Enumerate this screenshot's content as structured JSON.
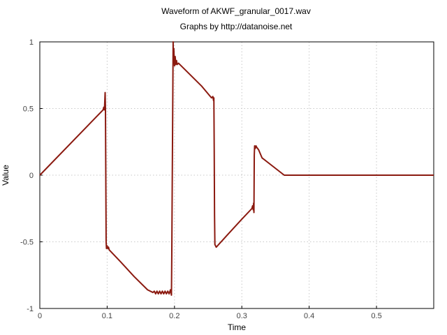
{
  "chart_data": {
    "type": "line",
    "title": "Waveform of AKWF_granular_0017.wav",
    "subtitle": "Graphs by http://datanoise.net",
    "xlabel": "Time",
    "ylabel": "Value",
    "xlim": [
      0,
      0.585
    ],
    "ylim": [
      -1,
      1
    ],
    "xticks": [
      0,
      0.1,
      0.2,
      0.3,
      0.4,
      0.5
    ],
    "xtick_labels": [
      "0",
      "0.1",
      "0.2",
      "0.3",
      "0.4",
      "0.5"
    ],
    "yticks": [
      -1,
      -0.5,
      0,
      0.5,
      1
    ],
    "ytick_labels": [
      "-1",
      "-0.5",
      "0",
      "0.5",
      "1"
    ],
    "grid": true,
    "line_color": "#8b1a10",
    "series": [
      {
        "x": [
          0,
          0.094,
          0.095,
          0.096,
          0.097,
          0.0975,
          0.0985,
          0.099,
          0.1,
          0.101,
          0.102,
          0.103,
          0.12,
          0.14,
          0.16,
          0.168,
          0.17,
          0.172,
          0.174,
          0.176,
          0.178,
          0.18,
          0.182,
          0.184,
          0.186,
          0.188,
          0.19,
          0.192,
          0.194,
          0.1955,
          0.196,
          0.1975,
          0.198,
          0.1985,
          0.199,
          0.2,
          0.201,
          0.202,
          0.203,
          0.204,
          0.206,
          0.22,
          0.24,
          0.255,
          0.257,
          0.258,
          0.2585,
          0.259,
          0.2595,
          0.26,
          0.262,
          0.28,
          0.3,
          0.315,
          0.316,
          0.317,
          0.3175,
          0.318,
          0.3185,
          0.319,
          0.32,
          0.321,
          0.322,
          0.325,
          0.33,
          0.363,
          0.585
        ],
        "y": [
          0,
          0.49,
          0.51,
          0.49,
          0.62,
          0.5,
          -0.5,
          -0.55,
          -0.53,
          -0.55,
          -0.54,
          -0.56,
          -0.65,
          -0.76,
          -0.86,
          -0.88,
          -0.87,
          -0.89,
          -0.87,
          -0.89,
          -0.87,
          -0.89,
          -0.87,
          -0.89,
          -0.87,
          -0.89,
          -0.87,
          -0.89,
          -0.86,
          -0.9,
          -0.6,
          0.6,
          1.0,
          0.85,
          0.95,
          0.82,
          0.89,
          0.83,
          0.86,
          0.83,
          0.84,
          0.77,
          0.67,
          0.58,
          0.59,
          0.56,
          0.58,
          0.2,
          -0.3,
          -0.52,
          -0.54,
          -0.44,
          -0.33,
          -0.25,
          -0.23,
          -0.26,
          -0.21,
          -0.28,
          0.15,
          0.22,
          0.2,
          0.22,
          0.21,
          0.19,
          0.13,
          0,
          0
        ]
      }
    ]
  }
}
